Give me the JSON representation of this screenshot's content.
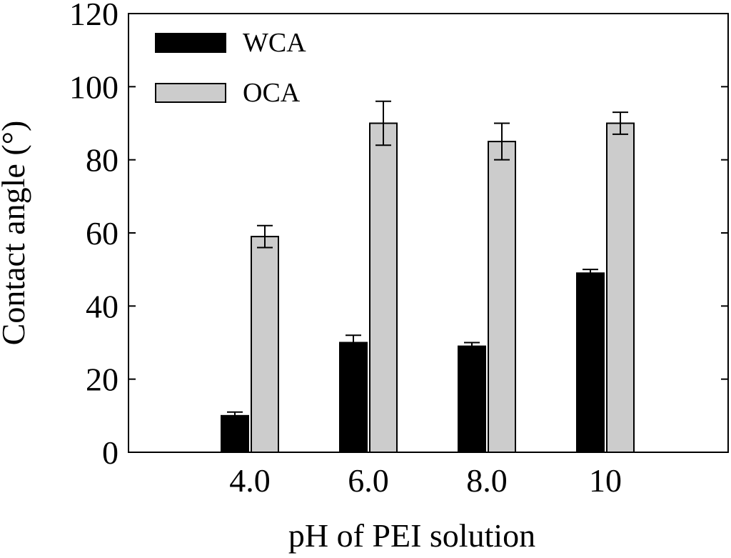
{
  "chart_data": {
    "type": "bar",
    "title": "",
    "xlabel": "pH of PEI solution",
    "ylabel": "Contact angle (°)",
    "ylim": [
      0,
      120
    ],
    "yticks": [
      0,
      20,
      40,
      60,
      80,
      100,
      120
    ],
    "categories": [
      "4.0",
      "6.0",
      "8.0",
      "10"
    ],
    "series": [
      {
        "name": "WCA",
        "color": "#000000",
        "values": [
          10,
          30,
          29,
          49
        ],
        "errors": [
          1,
          2,
          1,
          1
        ]
      },
      {
        "name": "OCA",
        "color": "#cccccc",
        "values": [
          59,
          90,
          85,
          90
        ],
        "errors": [
          3,
          6,
          5,
          3
        ]
      }
    ],
    "legend_position": "top-left",
    "grid": false
  }
}
